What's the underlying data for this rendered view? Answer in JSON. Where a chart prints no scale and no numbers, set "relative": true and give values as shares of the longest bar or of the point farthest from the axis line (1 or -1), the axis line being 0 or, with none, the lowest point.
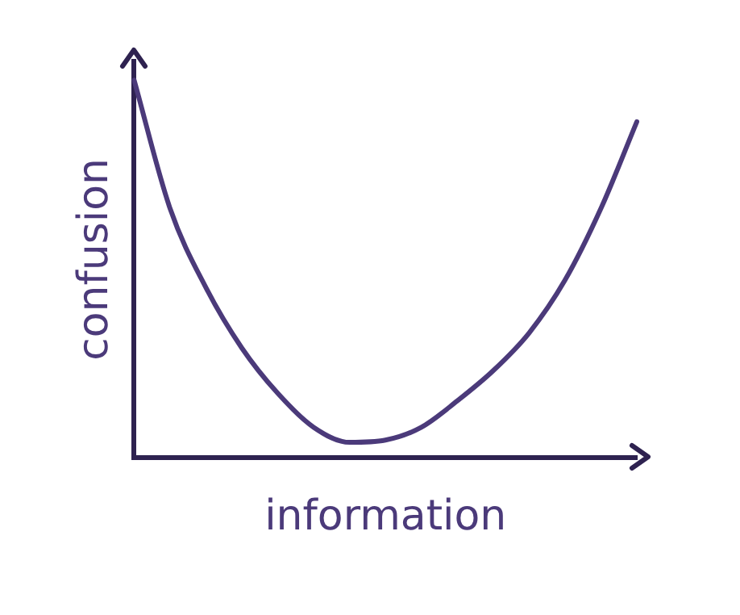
{
  "chart_data": {
    "type": "line",
    "relative": true,
    "xlabel": "information",
    "ylabel": "confusion",
    "color": "#4b3a7a",
    "marker": "none",
    "legend": false,
    "grid": false,
    "categories": [
      null,
      null,
      null,
      null,
      null,
      null,
      null,
      null,
      null,
      null,
      null,
      null,
      null,
      null,
      null
    ],
    "values": [
      1.0,
      0.66,
      0.45,
      0.29,
      0.17,
      0.08,
      0.04,
      0.046,
      0.08,
      0.15,
      0.23,
      0.33,
      0.47,
      0.66,
      0.89
    ]
  }
}
